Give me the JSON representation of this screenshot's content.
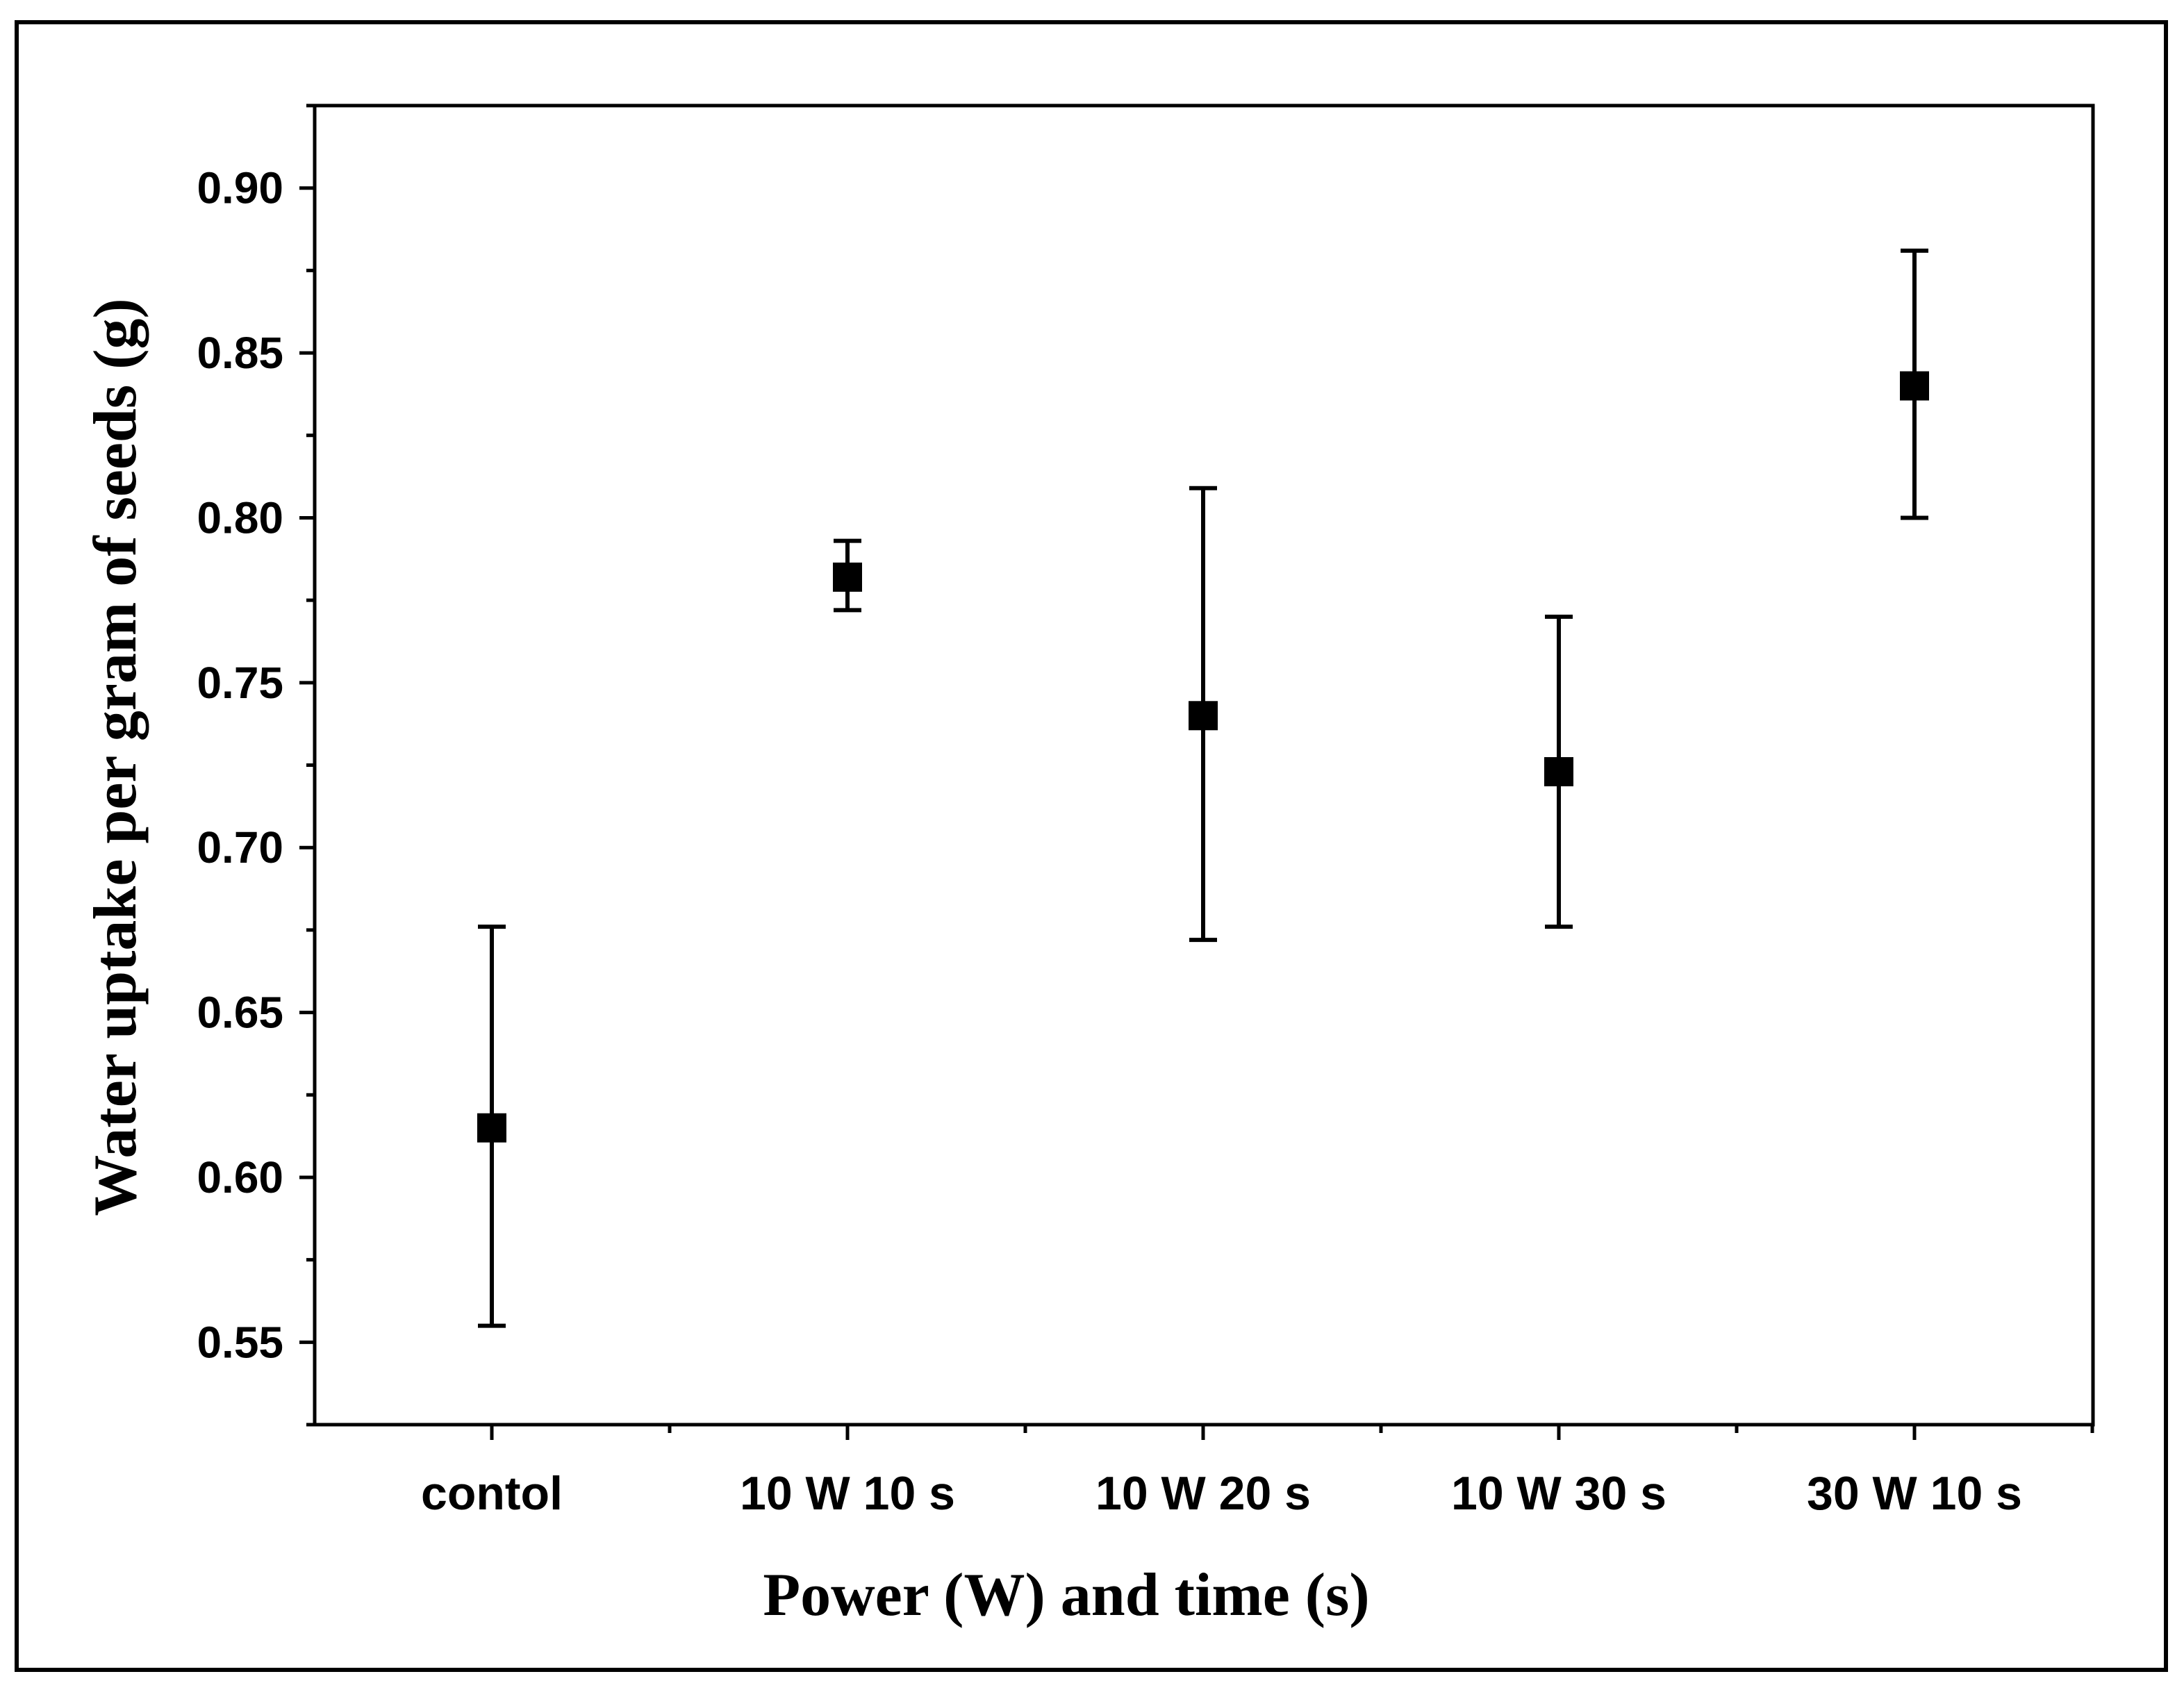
{
  "chart_data": {
    "type": "scatter",
    "title": "",
    "xlabel": "Power (W) and time (s)",
    "ylabel": "Water uptake per gram of seeds (g)",
    "categories": [
      "contol",
      "10 W 10 s",
      "10 W 20 s",
      "10 W 30 s",
      "30 W 10 s"
    ],
    "series": [
      {
        "name": "Water uptake",
        "values": [
          0.615,
          0.782,
          0.74,
          0.723,
          0.84
        ],
        "error_low": [
          0.555,
          0.772,
          0.672,
          0.676,
          0.8
        ],
        "error_high": [
          0.676,
          0.793,
          0.809,
          0.77,
          0.881
        ]
      }
    ],
    "ylim": [
      0.525,
      0.925
    ],
    "yticks": [
      0.55,
      0.6,
      0.65,
      0.7,
      0.75,
      0.8,
      0.85,
      0.9
    ],
    "ytick_labels": [
      "0.55",
      "0.60",
      "0.65",
      "0.70",
      "0.75",
      "0.80",
      "0.85",
      "0.90"
    ],
    "grid": false,
    "legend": "none",
    "marker": "square",
    "color": "#000000"
  }
}
